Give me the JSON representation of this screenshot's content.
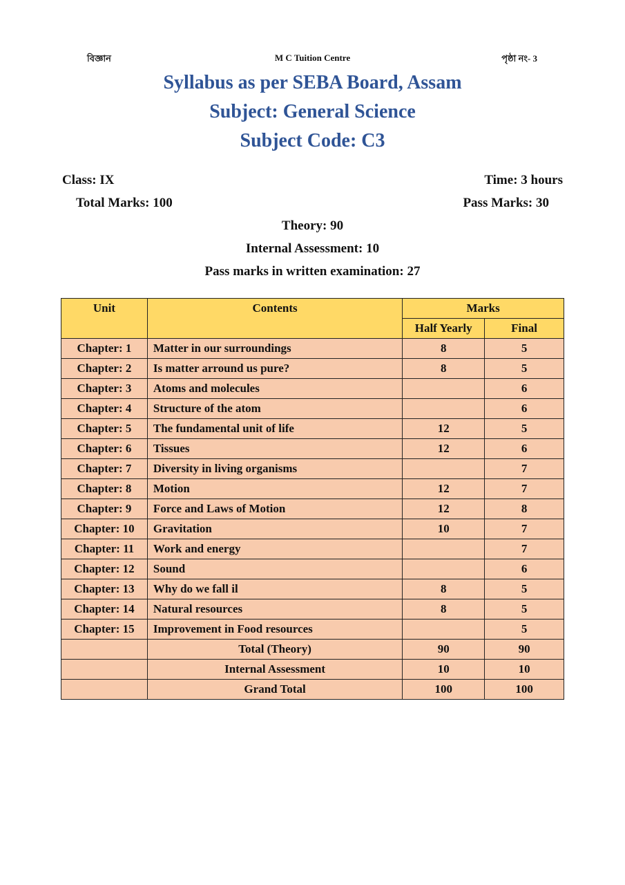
{
  "header": {
    "left": "বিজ্ঞান",
    "center": "M C Tuition Centre",
    "right": "পৃষ্ঠা নং- 3"
  },
  "titles": [
    "Syllabus as per SEBA Board, Assam",
    "Subject: General Science",
    "Subject Code: C3"
  ],
  "info": {
    "class": "Class: IX",
    "time": "Time: 3 hours",
    "total_marks": "Total Marks: 100",
    "pass_marks": "Pass Marks: 30",
    "theory": "Theory: 90",
    "internal": "Internal Assessment: 10",
    "written_pass": "Pass marks in written examination: 27"
  },
  "table": {
    "headers": {
      "unit": "Unit",
      "contents": "Contents",
      "marks": "Marks",
      "half_yearly": "Half Yearly",
      "final": "Final"
    },
    "rows": [
      {
        "unit": "Chapter: 1",
        "content": "Matter in our surroundings",
        "half": "8",
        "final": "5"
      },
      {
        "unit": "Chapter: 2",
        "content": "Is matter arround us pure?",
        "half": "8",
        "final": "5"
      },
      {
        "unit": "Chapter: 3",
        "content": "Atoms and molecules",
        "half": "",
        "final": "6"
      },
      {
        "unit": "Chapter: 4",
        "content": "Structure of the atom",
        "half": "",
        "final": "6"
      },
      {
        "unit": "Chapter: 5",
        "content": "The fundamental unit of life",
        "half": "12",
        "final": "5"
      },
      {
        "unit": "Chapter: 6",
        "content": "Tissues",
        "half": "12",
        "final": "6"
      },
      {
        "unit": "Chapter: 7",
        "content": "Diversity in living organisms",
        "half": "",
        "final": "7"
      },
      {
        "unit": "Chapter: 8",
        "content": "Motion",
        "half": "12",
        "final": "7"
      },
      {
        "unit": "Chapter: 9",
        "content": "Force and Laws of Motion",
        "half": "12",
        "final": "8"
      },
      {
        "unit": "Chapter: 10",
        "content": "Gravitation",
        "half": "10",
        "final": "7"
      },
      {
        "unit": "Chapter: 11",
        "content": "Work and energy",
        "half": "",
        "final": "7"
      },
      {
        "unit": "Chapter: 12",
        "content": "Sound",
        "half": "",
        "final": "6"
      },
      {
        "unit": "Chapter: 13",
        "content": "Why do we fall il",
        "half": "8",
        "final": "5"
      },
      {
        "unit": "Chapter: 14",
        "content": "Natural resources",
        "half": "8",
        "final": "5"
      },
      {
        "unit": "Chapter: 15",
        "content": "Improvement in Food resources",
        "half": "",
        "final": "5"
      }
    ],
    "totals": [
      {
        "label": "Total (Theory)",
        "half": "90",
        "final": "90"
      },
      {
        "label": "Internal Assessment",
        "half": "10",
        "final": "10"
      },
      {
        "label": "Grand Total",
        "half": "100",
        "final": "100"
      }
    ]
  }
}
